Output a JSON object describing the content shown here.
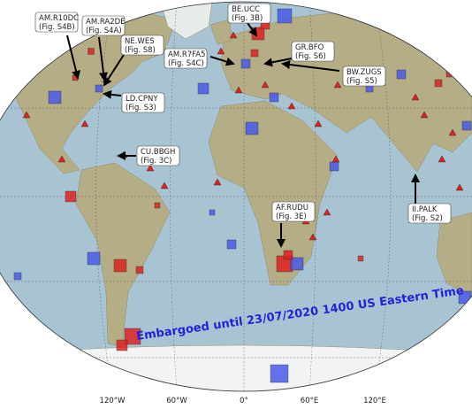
{
  "map": {
    "stations": [
      {
        "code": "AM.R10DC",
        "fig": "(Fig. S4B)"
      },
      {
        "code": "AM.RA2DE",
        "fig": "(Fig. S4A)"
      },
      {
        "code": "NE.WES",
        "fig": "(Fig. S8)"
      },
      {
        "code": "LD.CPNY",
        "fig": "(Fig. S3)"
      },
      {
        "code": "CU.BBGH",
        "fig": "(Fig. 3C)"
      },
      {
        "code": "BE.UCC",
        "fig": "(Fig. 3B)"
      },
      {
        "code": "AM.R7FA5",
        "fig": "(Fig. S4C)"
      },
      {
        "code": "GR.BFO",
        "fig": "(Fig. S6)"
      },
      {
        "code": "BW.ZUGS",
        "fig": "(Fig. S5)"
      },
      {
        "code": "AF.RUDU",
        "fig": "(Fig. 3E)"
      },
      {
        "code": "II.PALK",
        "fig": "(Fig. S2)"
      }
    ],
    "longitude_labels": [
      "120°W",
      "60°W",
      "0°",
      "60°E",
      "120°E"
    ],
    "banner": "Embargoed until 23/07/2020 1400 US Eastern Time"
  }
}
